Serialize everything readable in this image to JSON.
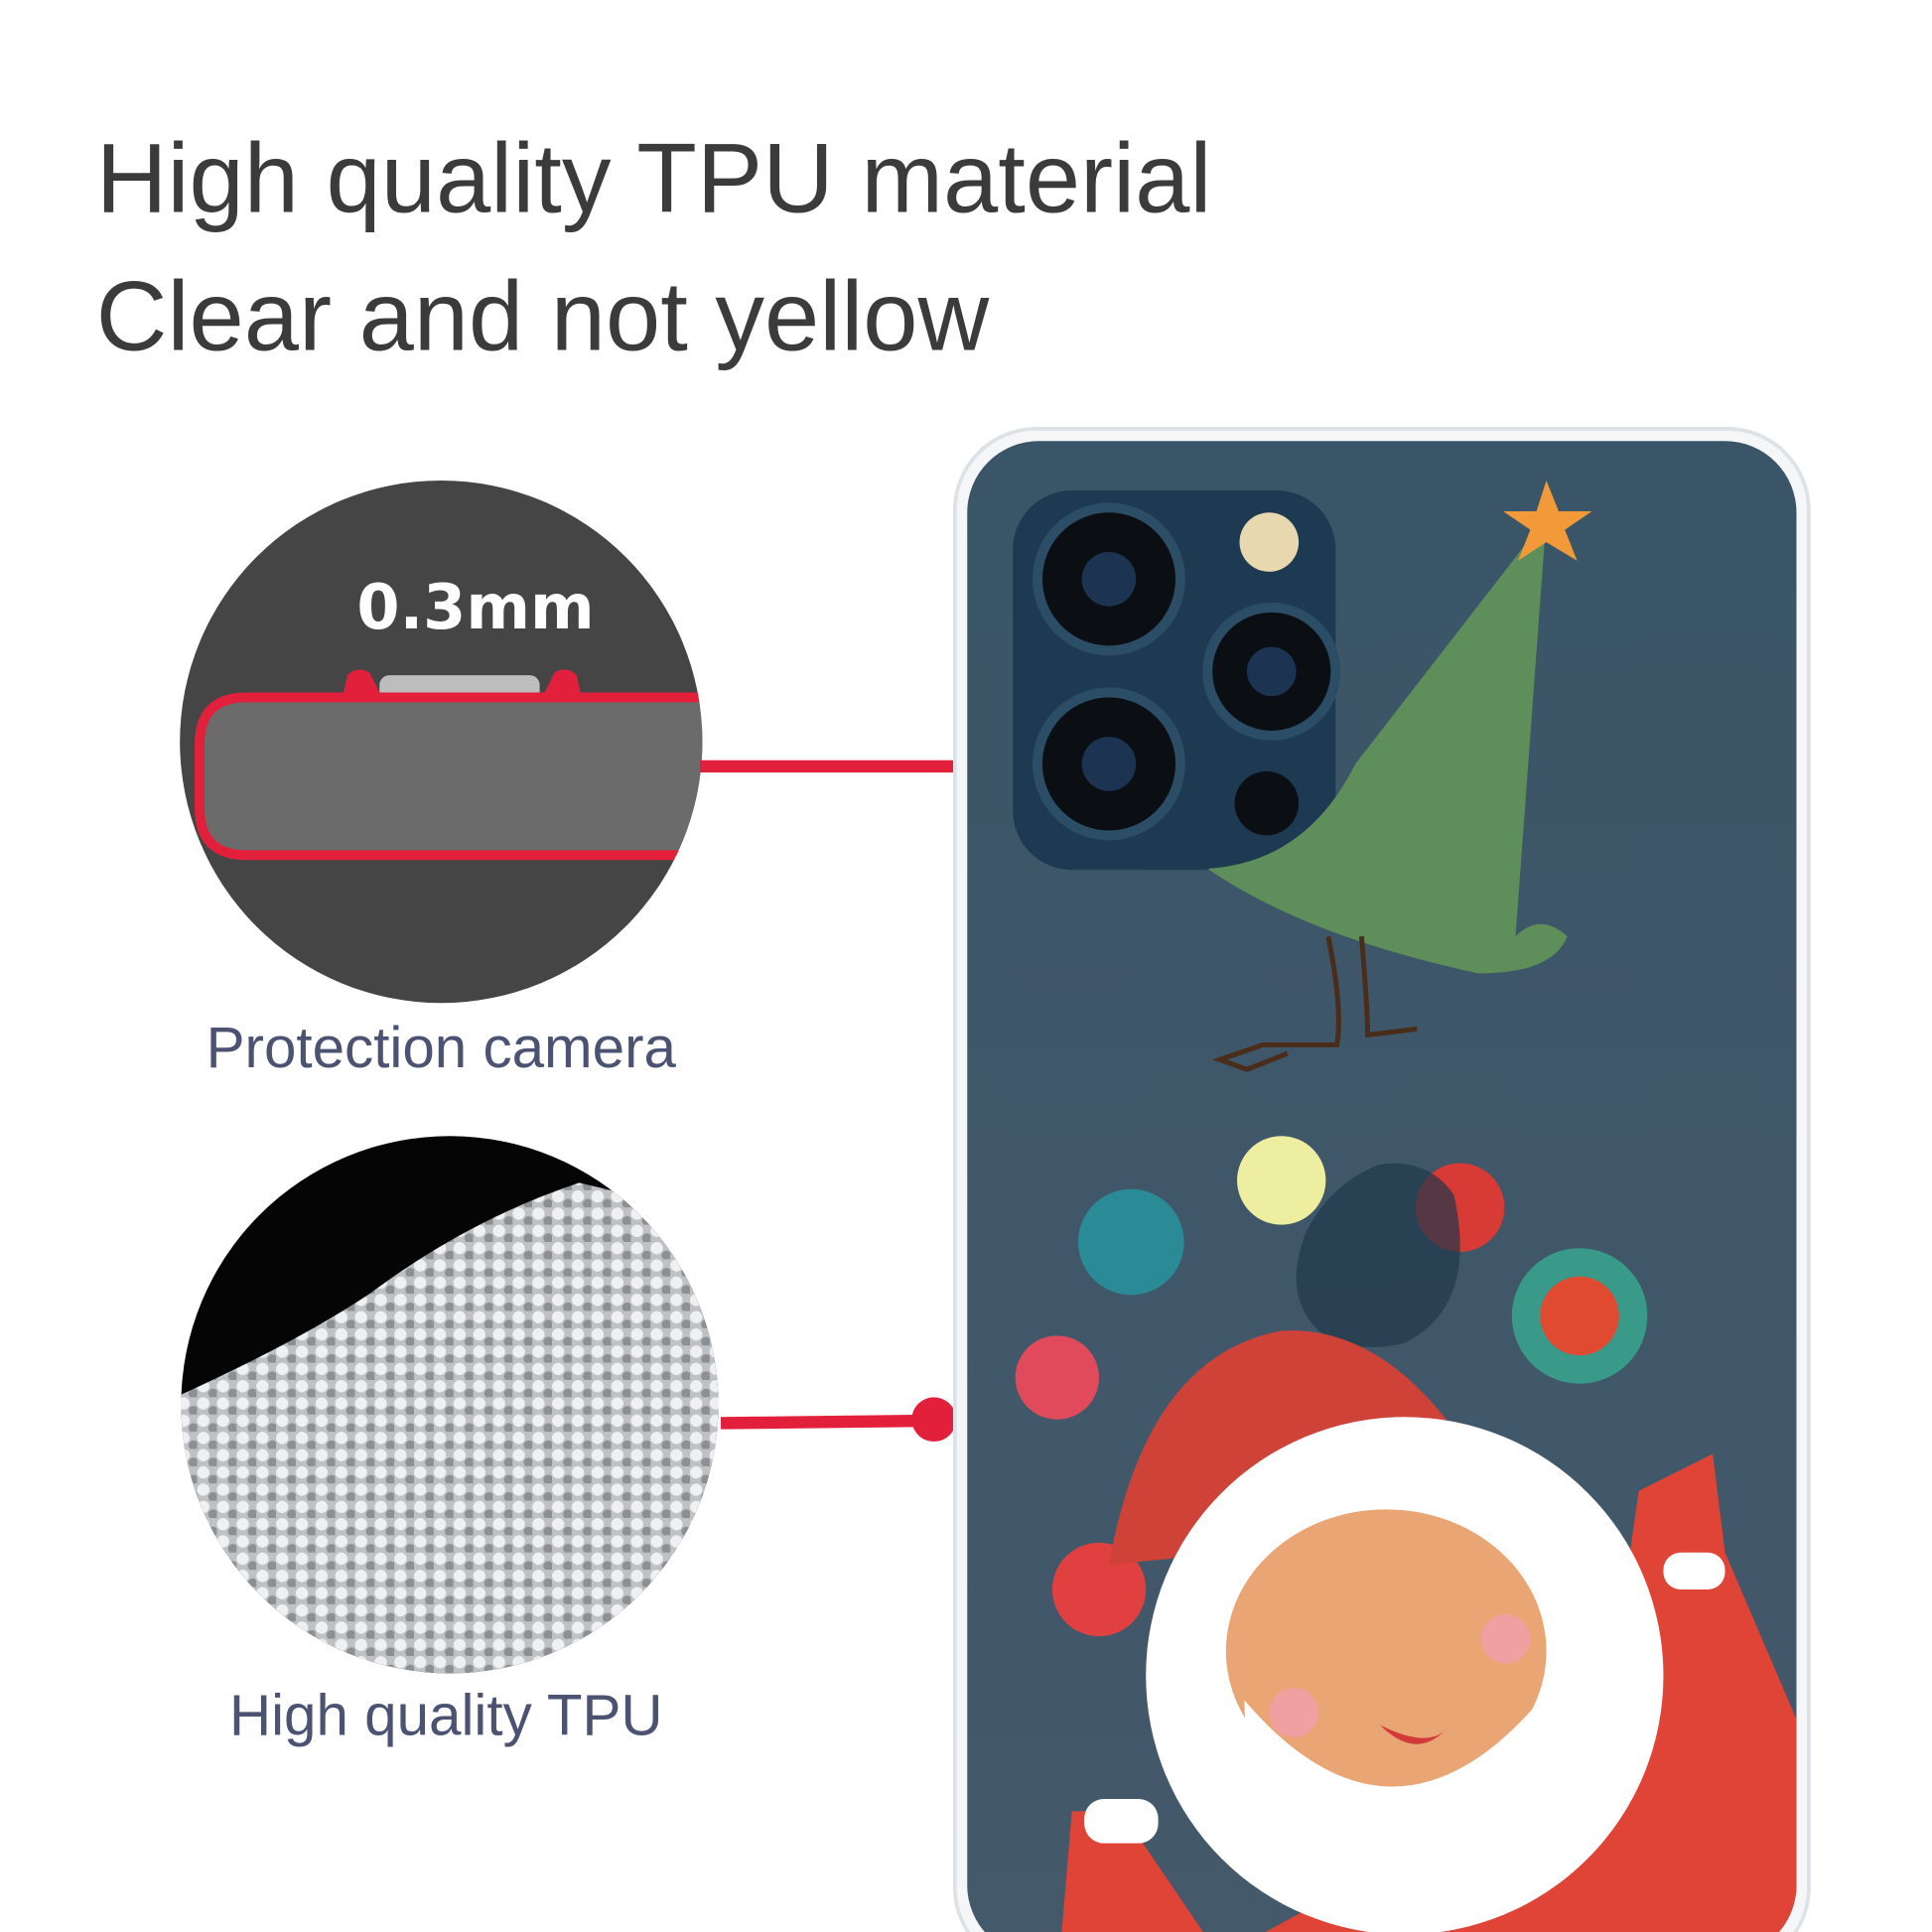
{
  "headline": {
    "line1": "High quality TPU material",
    "line2": "Clear and not yellow"
  },
  "callouts": [
    {
      "label": "Protection camera",
      "measure": "0.3mm"
    },
    {
      "label": "High quality TPU"
    }
  ],
  "colors": {
    "accent": "#e3203c",
    "text": "#3b3b3b",
    "caption": "#4c5272",
    "phone": "#3d5566"
  }
}
